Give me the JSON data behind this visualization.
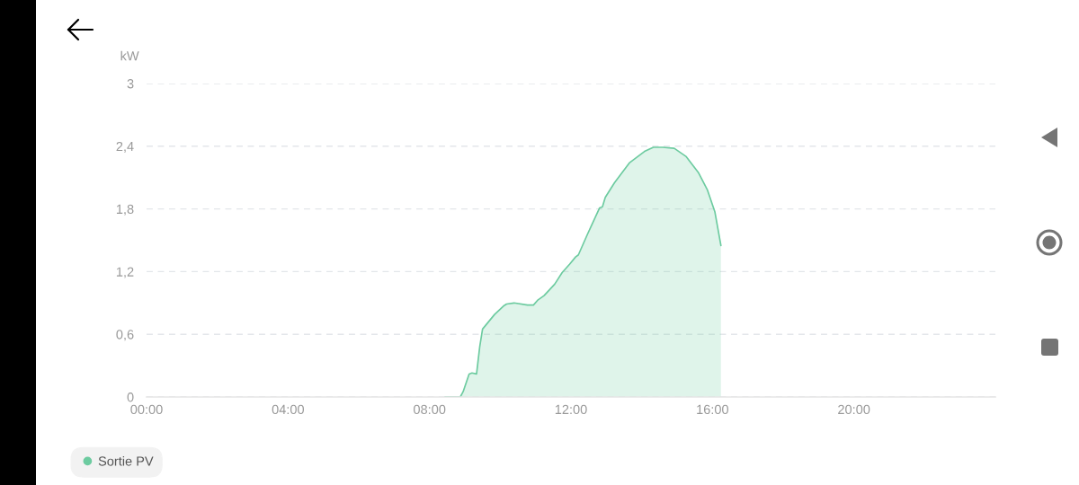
{
  "chart_data": {
    "type": "area",
    "ylabel": "kW",
    "xlim": [
      0,
      24
    ],
    "ylim": [
      0,
      3
    ],
    "xticks": [
      {
        "value": 0,
        "label": "00:00"
      },
      {
        "value": 4,
        "label": "04:00"
      },
      {
        "value": 8,
        "label": "08:00"
      },
      {
        "value": 12,
        "label": "12:00"
      },
      {
        "value": 16,
        "label": "16:00"
      },
      {
        "value": 20,
        "label": "20:00"
      }
    ],
    "yticks": [
      0,
      {
        "value": 0.6,
        "label": "0,6"
      },
      {
        "value": 1.2,
        "label": "1,2"
      },
      {
        "value": 1.8,
        "label": "1,8"
      },
      {
        "value": 2.4,
        "label": "2,4"
      },
      3
    ],
    "grid": "y",
    "legend": "bottom left",
    "marker": "none",
    "line_style": "solid",
    "series": [
      {
        "name": "Sortie PV",
        "color": "#6dcba0",
        "x": [
          8.44,
          8.87,
          8.95,
          9.12,
          9.2,
          9.33,
          9.42,
          9.5,
          9.84,
          10.09,
          10.18,
          10.39,
          10.77,
          10.94,
          11.07,
          11.24,
          11.54,
          11.75,
          11.96,
          12.13,
          12.21,
          12.47,
          12.81,
          12.89,
          12.97,
          13.23,
          13.65,
          14.08,
          14.33,
          14.59,
          14.92,
          15.26,
          15.6,
          15.86,
          16.07,
          16.24
        ],
        "values": [
          0,
          0,
          0.05,
          0.22,
          0.23,
          0.22,
          0.48,
          0.65,
          0.79,
          0.87,
          0.89,
          0.9,
          0.88,
          0.88,
          0.93,
          0.97,
          1.08,
          1.19,
          1.27,
          1.34,
          1.36,
          1.56,
          1.81,
          1.82,
          1.91,
          2.05,
          2.24,
          2.35,
          2.39,
          2.39,
          2.38,
          2.3,
          2.15,
          1.98,
          1.77,
          1.45
        ]
      }
    ]
  }
}
